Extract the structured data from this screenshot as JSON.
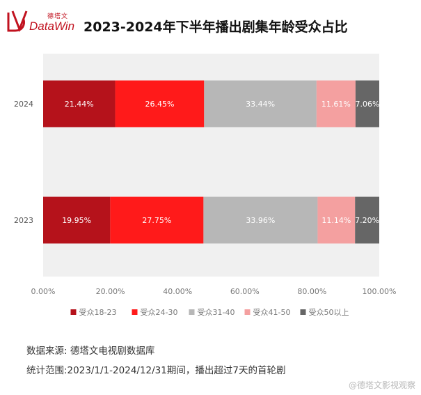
{
  "logo": {
    "cn": "德塔文",
    "en": "DataWin"
  },
  "title": "2023-2024年下半年播出剧集年龄受众占比",
  "colors": {
    "受众18-23": "#b5121b",
    "受众24-30": "#ff1a1a",
    "受众31-40": "#b7b7b7",
    "受众41-50": "#f4a0a0",
    "受众50以上": "#666666",
    "plot_background": "#f0f0f0"
  },
  "chart_data": {
    "type": "bar",
    "orientation": "horizontal",
    "stacked": true,
    "title": "2023-2024年下半年播出剧集年龄受众占比",
    "categories": [
      "2024",
      "2023"
    ],
    "series": [
      {
        "name": "受众18-23",
        "values": [
          21.44,
          19.95
        ],
        "labels": [
          "21.44%",
          "19.95%"
        ]
      },
      {
        "name": "受众24-30",
        "values": [
          26.45,
          27.75
        ],
        "labels": [
          "26.45%",
          "27.75%"
        ]
      },
      {
        "name": "受众31-40",
        "values": [
          33.44,
          33.96
        ],
        "labels": [
          "33.44%",
          "33.96%"
        ]
      },
      {
        "name": "受众41-50",
        "values": [
          11.61,
          11.14
        ],
        "labels": [
          "11.61%",
          "11.14%"
        ]
      },
      {
        "name": "受众50以上",
        "values": [
          7.06,
          7.2
        ],
        "labels": [
          "7.06%",
          "7.20%"
        ]
      }
    ],
    "xlim": [
      0,
      100
    ],
    "xticks": [
      "0.00%",
      "20.00%",
      "40.00%",
      "60.00%",
      "80.00%",
      "100.00%"
    ],
    "legend": "bottom",
    "grid": false
  },
  "footer": {
    "source": "数据来源: 德塔文电视剧数据库",
    "range": "统计范围:2023/1/1-2024/12/31期间，播出超过7天的首轮剧"
  },
  "watermark": "@德塔文影视观察"
}
